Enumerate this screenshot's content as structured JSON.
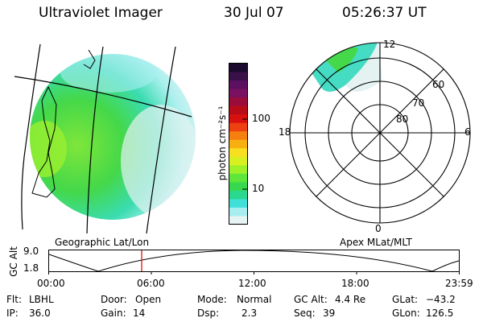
{
  "header": {
    "instrument": "Ultraviolet Imager",
    "date": "30 Jul 07",
    "time": "05:26:37 UT"
  },
  "colorbar": {
    "unit_label": "photon cm⁻²s⁻¹",
    "ticks": [
      "100",
      "10"
    ],
    "colors": [
      "#1a0a2e",
      "#3a1048",
      "#5b1060",
      "#7a1060",
      "#9a0c3a",
      "#b80c18",
      "#d81010",
      "#ee4010",
      "#f58010",
      "#f8b010",
      "#f8e020",
      "#d8f020",
      "#9ef028",
      "#5ee63a",
      "#38d84e",
      "#2ad890",
      "#40e0d8",
      "#a8eef0",
      "#e6f3f3"
    ]
  },
  "geo_panel": {
    "label": "Geographic Lat/Lon"
  },
  "polar_panel": {
    "label": "Apex MLat/MLT",
    "mlt_labels": {
      "top": "12",
      "left": "18",
      "right": "6",
      "bottom": "0"
    },
    "lat_labels": [
      "80",
      "70",
      "60"
    ]
  },
  "altitude_plot": {
    "ylabel": "GC Alt",
    "y_ticks": [
      "9.0",
      "1.8"
    ],
    "x_ticks": [
      "00:00",
      "06:00",
      "12:00",
      "18:00",
      "23:59"
    ],
    "marker_color": "#e01010"
  },
  "info": {
    "flt": {
      "label": "Flt:",
      "value": "LBHL"
    },
    "ip": {
      "label": "IP:",
      "value": "36.0"
    },
    "door": {
      "label": "Door:",
      "value": "Open"
    },
    "gain": {
      "label": "Gain:",
      "value": "14"
    },
    "mode": {
      "label": "Mode:",
      "value": "Normal"
    },
    "dsp": {
      "label": "Dsp:",
      "value": "2.3"
    },
    "gcalt": {
      "label": "GC Alt:",
      "value": "4.4 Re"
    },
    "seq": {
      "label": "Seq:",
      "value": "39"
    },
    "glat": {
      "label": "GLat:",
      "value": "−43.2"
    },
    "glon": {
      "label": "GLon:",
      "value": "126.5"
    }
  }
}
